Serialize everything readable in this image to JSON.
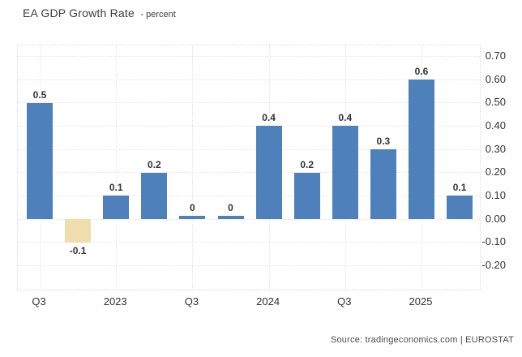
{
  "title": {
    "main": "EA GDP Growth Rate",
    "subtitle": "- percent"
  },
  "footer": {
    "source": "Source: tradingeconomics.com | EUROSTAT"
  },
  "colors": {
    "bar_positive": "#4e80bc",
    "bar_negative": "#f1dcae",
    "grid": "#e3e3e3",
    "axis_text": "#333333",
    "title_text": "#3c3c3c",
    "source_text": "#4a4a4a"
  },
  "chart_data": {
    "type": "bar",
    "title": "EA GDP Growth Rate",
    "ylabel": "percent",
    "categories": [
      "Q3",
      "",
      "2023",
      "",
      "Q3",
      "",
      "2024",
      "",
      "Q3",
      "",
      "2025",
      ""
    ],
    "values": [
      0.5,
      -0.1,
      0.1,
      0.2,
      0,
      0,
      0.4,
      0.2,
      0.4,
      0.3,
      0.6,
      0.1
    ],
    "bar_labels": [
      "0.5",
      "-0.1",
      "0.1",
      "0.2",
      "0",
      "0",
      "0.4",
      "0.2",
      "0.4",
      "0.3",
      "0.6",
      "0.1"
    ],
    "y_ticks": [
      "0.70",
      "0.60",
      "0.50",
      "0.40",
      "0.30",
      "0.20",
      "0.10",
      "0.00",
      "-0.10",
      "-0.20"
    ],
    "ylim": [
      -0.305,
      0.745
    ],
    "grid": true,
    "legend": "none",
    "source": "Source: tradingeconomics.com | EUROSTAT"
  }
}
